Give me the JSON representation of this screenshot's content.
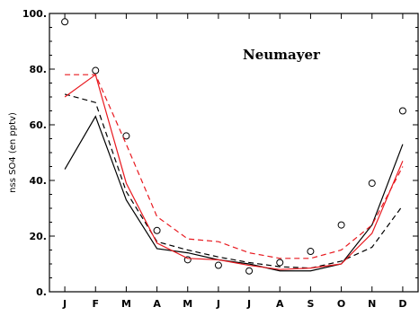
{
  "chart_data": {
    "type": "line",
    "title": "Neumayer",
    "xlabel": "",
    "ylabel": "nss SO4 (en pptv)",
    "categories": [
      "J",
      "F",
      "M",
      "A",
      "M",
      "J",
      "J",
      "A",
      "S",
      "O",
      "N",
      "D"
    ],
    "ylim": [
      0,
      100
    ],
    "yticks": [
      0,
      20,
      40,
      60,
      80,
      100
    ],
    "ytick_labels": [
      "0.",
      "20.",
      "40.",
      "60.",
      "80.",
      "100."
    ],
    "grid": false,
    "series": [
      {
        "style": "observed-circles",
        "color": "#000000",
        "values": [
          97,
          79.5,
          56,
          22,
          11.5,
          9.5,
          7.5,
          10.5,
          14.5,
          24,
          39,
          65
        ]
      },
      {
        "style": "solid",
        "color": "#000000",
        "values": [
          44,
          63,
          33,
          15.5,
          14,
          11.5,
          10,
          7.5,
          7.5,
          10,
          24,
          53
        ]
      },
      {
        "style": "dashed",
        "color": "#000000",
        "values": [
          71,
          68,
          36,
          18,
          15,
          12.5,
          10.5,
          9,
          8.5,
          11,
          16,
          31
        ]
      },
      {
        "style": "solid",
        "color": "#e8191f",
        "values": [
          70,
          78,
          39,
          17.5,
          12,
          11.5,
          9.5,
          8,
          8.5,
          10,
          21,
          47
        ]
      },
      {
        "style": "dashed",
        "color": "#e8191f",
        "values": [
          78,
          78,
          53,
          27,
          19,
          18,
          14,
          12,
          12,
          15,
          24,
          45
        ]
      }
    ]
  }
}
